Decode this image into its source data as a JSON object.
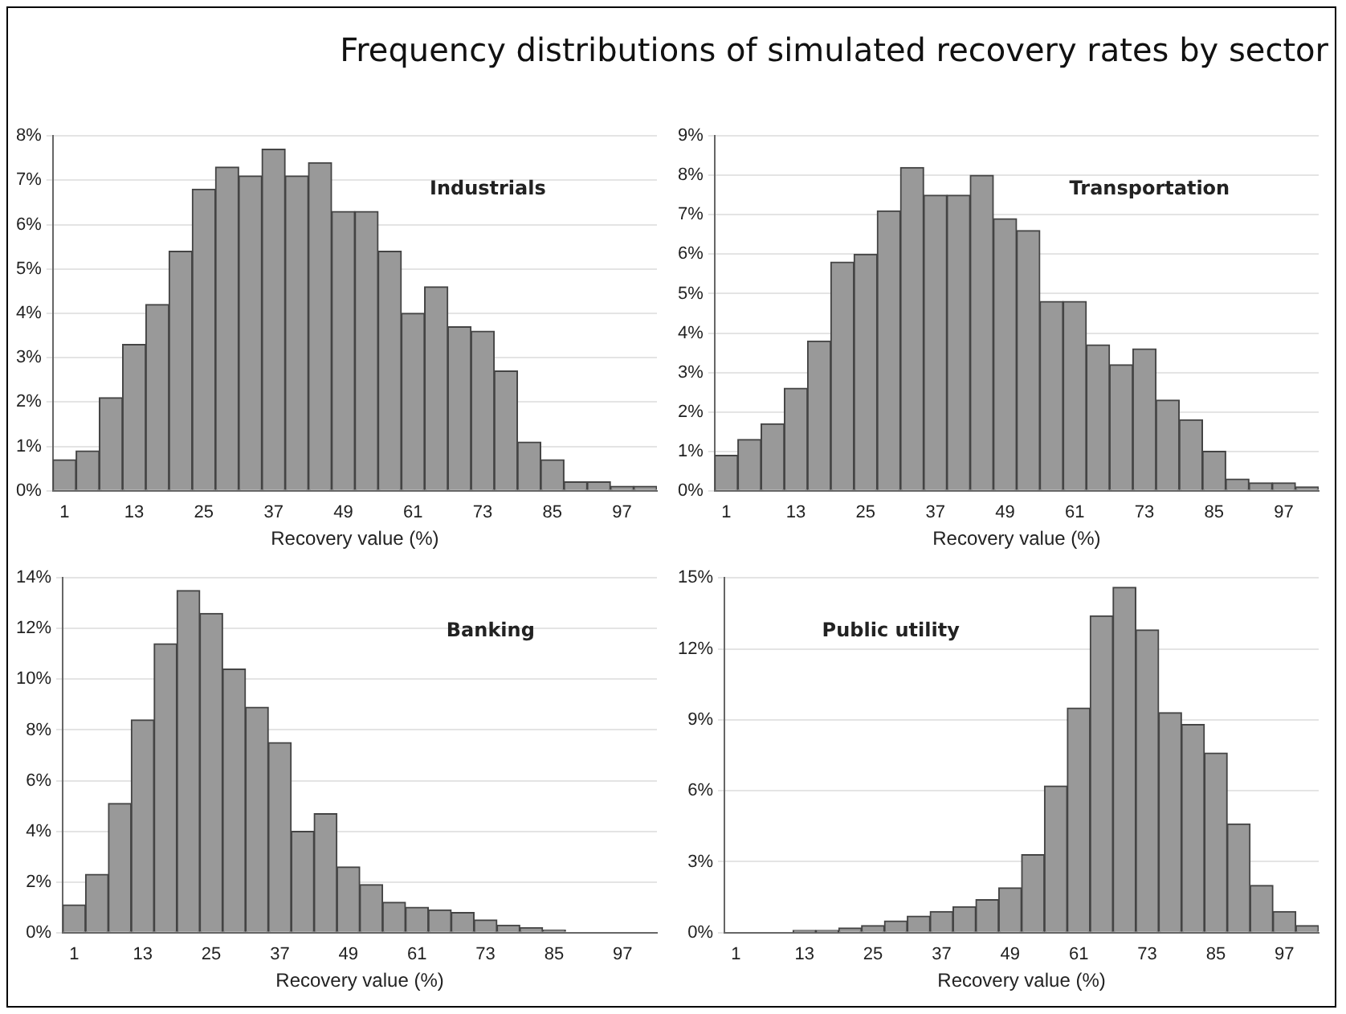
{
  "chart_data": [
    {
      "type": "bar",
      "title": "Frequency distributions of simulated recovery rates by sector",
      "xlabel": "Recovery value (%)",
      "annotations": [
        "Industrials"
      ],
      "categories": [
        "1",
        null,
        null,
        "13",
        null,
        null,
        "25",
        null,
        null,
        "37",
        null,
        null,
        "49",
        null,
        null,
        "61",
        null,
        null,
        "73",
        null,
        null,
        "85",
        null,
        null,
        "97",
        null
      ],
      "color": "#999999",
      "values": [
        0.7,
        0.9,
        2.1,
        3.3,
        4.2,
        5.4,
        6.8,
        7.3,
        7.1,
        7.7,
        7.1,
        7.4,
        6.3,
        6.3,
        5.4,
        4.0,
        4.6,
        3.7,
        3.6,
        2.7,
        1.1,
        0.7,
        0.2,
        0.2,
        0.1,
        0.1
      ],
      "ylim": [
        0,
        8
      ],
      "yticks": [
        {
          "value": 0,
          "label": "0%"
        },
        {
          "value": 1,
          "label": "1%"
        },
        {
          "value": 2,
          "label": "2%"
        },
        {
          "value": 3,
          "label": "3%"
        },
        {
          "value": 4,
          "label": "4%"
        },
        {
          "value": 5,
          "label": "5%"
        },
        {
          "value": 6,
          "label": "6%"
        },
        {
          "value": 7,
          "label": "7%"
        },
        {
          "value": 8,
          "label": "8%"
        }
      ],
      "grid": "y"
    },
    {
      "type": "bar",
      "xlabel": "Recovery value (%)",
      "annotations": [
        "Transportation"
      ],
      "categories": [
        "1",
        null,
        null,
        "13",
        null,
        null,
        "25",
        null,
        null,
        "37",
        null,
        null,
        "49",
        null,
        null,
        "61",
        null,
        null,
        "73",
        null,
        null,
        "85",
        null,
        null,
        "97",
        null
      ],
      "color": "#999999",
      "values": [
        0.9,
        1.3,
        1.7,
        2.6,
        3.8,
        5.8,
        6.0,
        7.1,
        8.2,
        7.5,
        7.5,
        8.0,
        6.9,
        6.6,
        4.8,
        4.8,
        3.7,
        3.2,
        3.6,
        2.3,
        1.8,
        1.0,
        0.3,
        0.2,
        0.2,
        0.1
      ],
      "ylim": [
        0,
        9
      ],
      "yticks": [
        {
          "value": 0,
          "label": "0%"
        },
        {
          "value": 1,
          "label": "1%"
        },
        {
          "value": 2,
          "label": "2%"
        },
        {
          "value": 3,
          "label": "3%"
        },
        {
          "value": 4,
          "label": "4%"
        },
        {
          "value": 5,
          "label": "5%"
        },
        {
          "value": 6,
          "label": "6%"
        },
        {
          "value": 7,
          "label": "7%"
        },
        {
          "value": 8,
          "label": "8%"
        },
        {
          "value": 9,
          "label": "9%"
        }
      ],
      "grid": "y"
    },
    {
      "type": "bar",
      "xlabel": "Recovery value (%)",
      "annotations": [
        "Banking"
      ],
      "categories": [
        "1",
        null,
        null,
        "13",
        null,
        null,
        "25",
        null,
        null,
        "37",
        null,
        null,
        "49",
        null,
        null,
        "61",
        null,
        null,
        "73",
        null,
        null,
        "85",
        null,
        null,
        "97",
        null
      ],
      "color": "#999999",
      "values": [
        1.1,
        2.3,
        5.1,
        8.4,
        11.4,
        13.5,
        12.6,
        10.4,
        8.9,
        7.5,
        4.0,
        4.7,
        2.6,
        1.9,
        1.2,
        1.0,
        0.9,
        0.8,
        0.5,
        0.3,
        0.2,
        0.1,
        0,
        0,
        0,
        0
      ],
      "ylim": [
        0,
        14
      ],
      "yticks": [
        {
          "value": 0,
          "label": "0%"
        },
        {
          "value": 2,
          "label": "2%"
        },
        {
          "value": 4,
          "label": "4%"
        },
        {
          "value": 6,
          "label": "6%"
        },
        {
          "value": 8,
          "label": "8%"
        },
        {
          "value": 10,
          "label": "10%"
        },
        {
          "value": 12,
          "label": "12%"
        },
        {
          "value": 14,
          "label": "14%"
        }
      ],
      "grid": "y"
    },
    {
      "type": "bar",
      "xlabel": "Recovery value (%)",
      "annotations": [
        "Public utility"
      ],
      "categories": [
        "1",
        null,
        null,
        "13",
        null,
        null,
        "25",
        null,
        null,
        "37",
        null,
        null,
        "49",
        null,
        null,
        "61",
        null,
        null,
        "73",
        null,
        null,
        "85",
        null,
        null,
        "97",
        null
      ],
      "color": "#999999",
      "values": [
        0,
        0,
        0,
        0.1,
        0.1,
        0.2,
        0.3,
        0.5,
        0.7,
        0.9,
        1.1,
        1.4,
        1.9,
        3.3,
        6.2,
        9.5,
        13.4,
        14.6,
        12.8,
        9.3,
        8.8,
        7.6,
        4.6,
        2.0,
        0.9,
        0.3
      ],
      "ylim": [
        0,
        15
      ],
      "yticks": [
        {
          "value": 0,
          "label": "0%"
        },
        {
          "value": 3,
          "label": "3%"
        },
        {
          "value": 6,
          "label": "6%"
        },
        {
          "value": 9,
          "label": "9%"
        },
        {
          "value": 12,
          "label": "12%"
        },
        {
          "value": 15,
          "label": "15%"
        }
      ],
      "grid": "y"
    }
  ]
}
